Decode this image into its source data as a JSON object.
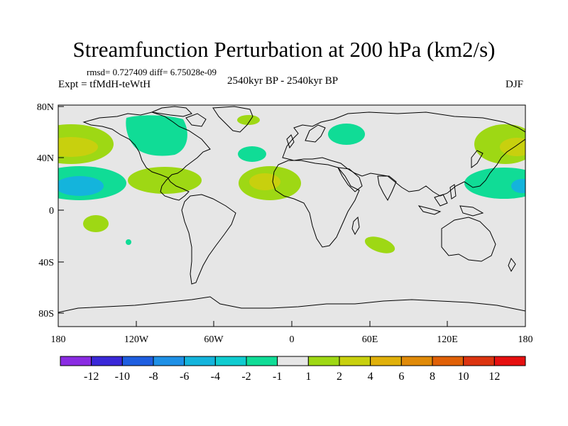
{
  "title": "Streamfunction Perturbation at 200 hPa (km2/s)",
  "stats": "rmsd= 0.727409 diff= 6.75028e-09",
  "experiment": "Expt = tfMdH-teWtH",
  "period": "2540kyr BP - 2540kyr BP",
  "season": "DJF",
  "lat_ticks": [
    "80N",
    "40N",
    "0",
    "40S",
    "80S"
  ],
  "lon_ticks": [
    "180",
    "120W",
    "60W",
    "0",
    "60E",
    "120E",
    "180"
  ],
  "colorbar": {
    "labels": [
      "-12",
      "-10",
      "-8",
      "-6",
      "-4",
      "-2",
      "-1",
      "1",
      "2",
      "4",
      "6",
      "8",
      "10",
      "12"
    ],
    "colors": [
      "#8a2be2",
      "#3a28d8",
      "#1e5ee0",
      "#1e90e6",
      "#14b4dc",
      "#10ccd0",
      "#10dc96",
      "#e6e6e6",
      "#9ed814",
      "#c8d00e",
      "#e0b00a",
      "#e08a08",
      "#e06006",
      "#dc3410",
      "#e61010"
    ]
  }
}
